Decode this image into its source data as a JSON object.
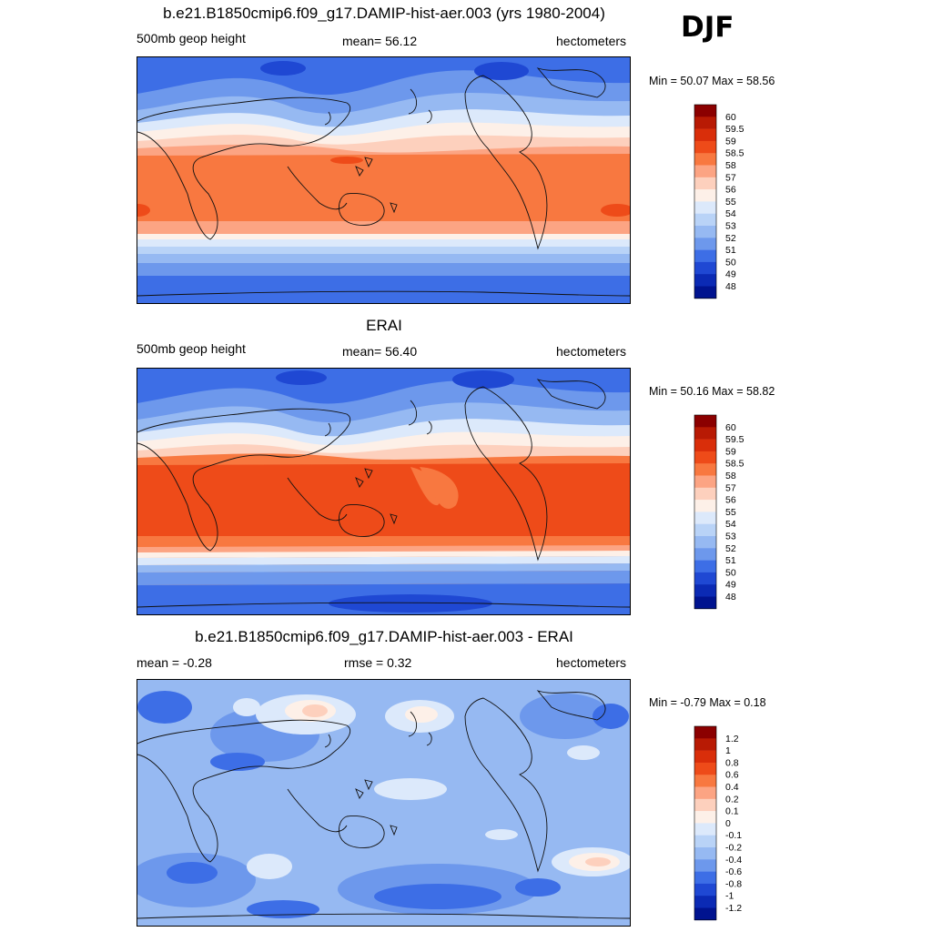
{
  "season": "DJF",
  "panels": [
    {
      "id": "model",
      "title": "b.e21.B1850cmip6.f09_g17.DAMIP-hist-aer.003 (yrs 1980-2004)",
      "left_label": "500mb geop height",
      "center_label": "mean=  56.12",
      "right_label": "hectometers",
      "minmax": "Min =  50.07 Max =  58.56",
      "colorbar_labels": [
        "60",
        "59.5",
        "59",
        "58.5",
        "58",
        "57",
        "56",
        "55",
        "54",
        "53",
        "52",
        "51",
        "50",
        "49",
        "48"
      ],
      "colorbar_colors": [
        "#8b0000",
        "#b81a04",
        "#d92e0a",
        "#ee4b19",
        "#f87840",
        "#fca483",
        "#fdd0bd",
        "#fdf0e8",
        "#dce9fb",
        "#b9d3f7",
        "#96b9f2",
        "#6d98ec",
        "#3d6ee6",
        "#1f48d3",
        "#0b2ab4",
        "#00138f"
      ],
      "contour_label": "cntr_tropical_max"
    },
    {
      "id": "obs",
      "title": "ERAI",
      "left_label": "500mb geop height",
      "center_label": "mean=  56.40",
      "right_label": "hectometers",
      "minmax": "Min =  50.16 Max =  58.82",
      "colorbar_labels": [
        "60",
        "59.5",
        "59",
        "58.5",
        "58",
        "57",
        "56",
        "55",
        "54",
        "53",
        "52",
        "51",
        "50",
        "49",
        "48"
      ],
      "colorbar_colors": [
        "#8b0000",
        "#b81a04",
        "#d92e0a",
        "#ee4b19",
        "#f87840",
        "#fca483",
        "#fdd0bd",
        "#fdf0e8",
        "#dce9fb",
        "#b9d3f7",
        "#96b9f2",
        "#6d98ec",
        "#3d6ee6",
        "#1f48d3",
        "#0b2ab4",
        "#00138f"
      ]
    },
    {
      "id": "diff",
      "title": "b.e21.B1850cmip6.f09_g17.DAMIP-hist-aer.003 - ERAI",
      "left_label": "mean =  -0.28",
      "center_label": "rmse =   0.32",
      "right_label": "hectometers",
      "minmax": "Min =  -0.79 Max =   0.18",
      "colorbar_labels": [
        "1.2",
        "1",
        "0.8",
        "0.6",
        "0.4",
        "0.2",
        "0.1",
        "0",
        "-0.1",
        "-0.2",
        "-0.4",
        "-0.6",
        "-0.8",
        "-1",
        "-1.2"
      ],
      "colorbar_colors": [
        "#8b0000",
        "#b81a04",
        "#d92e0a",
        "#ee4b19",
        "#f87840",
        "#fca483",
        "#fdd0bd",
        "#fdf0e8",
        "#dce9fb",
        "#b9d3f7",
        "#96b9f2",
        "#6d98ec",
        "#3d6ee6",
        "#1f48d3",
        "#0b2ab4",
        "#00138f"
      ]
    }
  ]
}
